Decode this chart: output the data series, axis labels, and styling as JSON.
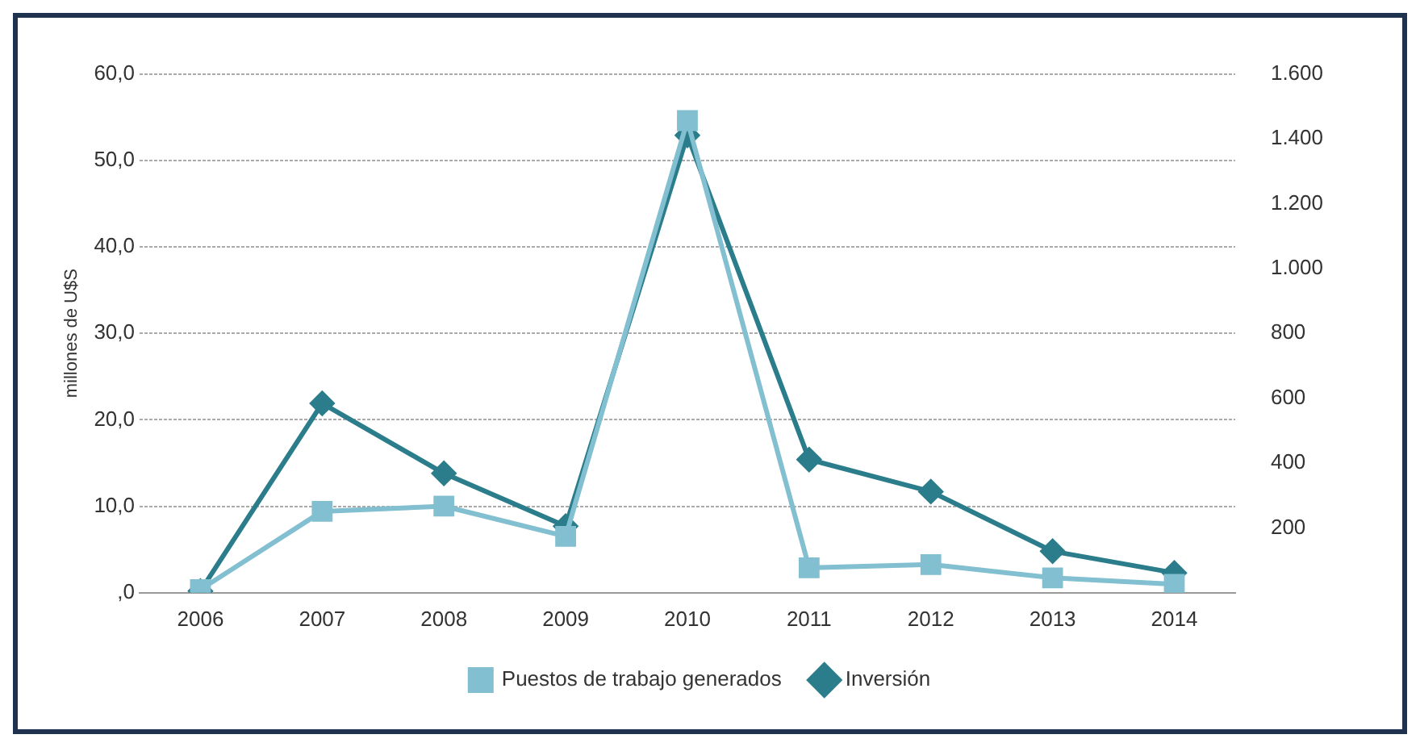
{
  "chart_data": {
    "type": "line",
    "ylabel": "millones de U$S",
    "categories": [
      "2006",
      "2007",
      "2008",
      "2009",
      "2010",
      "2011",
      "2012",
      "2013",
      "2014"
    ],
    "series": [
      {
        "name": "Inversión",
        "color": "#2b7d8c",
        "marker": "diamond",
        "values": [
          0.2,
          21.9,
          13.8,
          7.7,
          52.9,
          15.4,
          11.7,
          4.8,
          2.3
        ]
      },
      {
        "name": "Puestos de trabajo generados",
        "color": "#82bfd0",
        "marker": "square",
        "axis": "y2",
        "values": [
          10,
          251,
          267,
          174,
          1456,
          77,
          87,
          46,
          26
        ]
      }
    ],
    "ylim": [
      0,
      60
    ],
    "yticks": [
      {
        "value": 0,
        "label": ",0"
      },
      {
        "value": 10,
        "label": "10,0"
      },
      {
        "value": 20,
        "label": "20,0"
      },
      {
        "value": 30,
        "label": "30,0"
      },
      {
        "value": 40,
        "label": "40,0"
      },
      {
        "value": 50,
        "label": "50,0"
      },
      {
        "value": 60,
        "label": "60,0"
      }
    ],
    "y2lim": [
      0,
      1600
    ],
    "y2ticks": [
      {
        "value": 200,
        "label": "200"
      },
      {
        "value": 400,
        "label": "400"
      },
      {
        "value": 600,
        "label": "600"
      },
      {
        "value": 800,
        "label": "800"
      },
      {
        "value": 1000,
        "label": "1.000"
      },
      {
        "value": 1200,
        "label": "1.200"
      },
      {
        "value": 1400,
        "label": "1.400"
      },
      {
        "value": 1600,
        "label": "1.600"
      }
    ],
    "grid": "y",
    "legend": "bottom",
    "line_style": "solid"
  }
}
